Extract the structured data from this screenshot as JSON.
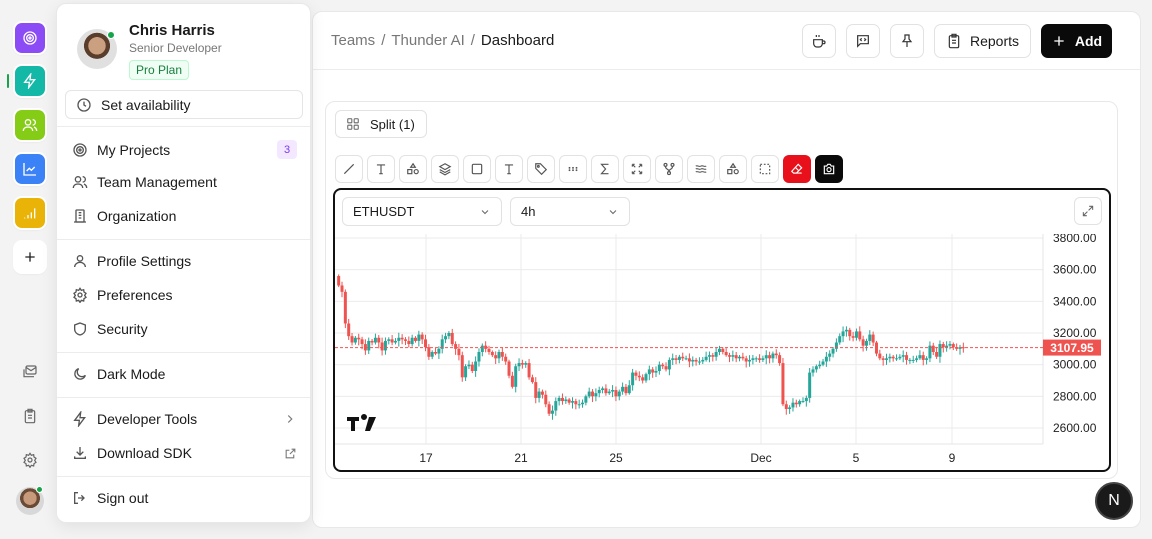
{
  "rail": {
    "apps": [
      {
        "name": "target-app",
        "color": "#8b4cf6"
      },
      {
        "name": "bolt-app",
        "color": "#14b8a6"
      },
      {
        "name": "team-app",
        "color": "#84cc16"
      },
      {
        "name": "analytics-app",
        "color": "#3b82f6"
      },
      {
        "name": "signal-app",
        "color": "#eab308"
      }
    ],
    "active_index": 1,
    "add_label": "+"
  },
  "user": {
    "name": "Chris Harris",
    "role": "Senior Developer",
    "plan": "Pro Plan",
    "status": "online"
  },
  "menu": {
    "availability": "Set availability",
    "items": [
      {
        "label": "My Projects",
        "badge": "3"
      },
      {
        "label": "Team Management"
      },
      {
        "label": "Organization"
      },
      {
        "label": "Profile Settings"
      },
      {
        "label": "Preferences"
      },
      {
        "label": "Security"
      },
      {
        "label": "Dark Mode"
      },
      {
        "label": "Developer Tools"
      },
      {
        "label": "Download SDK"
      },
      {
        "label": "Sign out"
      }
    ]
  },
  "breadcrumb": [
    "Teams",
    "Thunder AI",
    "Dashboard"
  ],
  "toolbar": {
    "reports": "Reports",
    "add": "Add"
  },
  "split_label": "Split (1)",
  "chart": {
    "symbol": "ETHUSDT",
    "interval": "4h",
    "last_price": "3107.95",
    "fab_letter": "N"
  },
  "chart_data": {
    "type": "candlestick",
    "title": "ETHUSDT 4h",
    "x_ticks": [
      "17",
      "21",
      "25",
      "Dec",
      "5",
      "9"
    ],
    "y_ticks": [
      "3800.00",
      "3600.00",
      "3400.00",
      "3200.00",
      "3000.00",
      "2800.00",
      "2600.00"
    ],
    "ylim": [
      2500,
      3850
    ],
    "last_price": 3107.95,
    "up_color": "#26a69a",
    "down_color": "#ef5350",
    "closes": [
      3500,
      3460,
      3260,
      3180,
      3140,
      3170,
      3160,
      3130,
      3090,
      3150,
      3140,
      3170,
      3140,
      3090,
      3150,
      3160,
      3140,
      3150,
      3170,
      3160,
      3150,
      3130,
      3170,
      3150,
      3190,
      3160,
      3110,
      3050,
      3080,
      3070,
      3100,
      3160,
      3180,
      3200,
      3130,
      3100,
      3060,
      2920,
      2990,
      3000,
      2960,
      3020,
      3080,
      3120,
      3100,
      3080,
      3060,
      3040,
      3080,
      3050,
      3020,
      2930,
      2860,
      2990,
      3010,
      3000,
      3010,
      2920,
      2890,
      2790,
      2830,
      2810,
      2750,
      2690,
      2710,
      2770,
      2790,
      2770,
      2780,
      2760,
      2770,
      2750,
      2750,
      2760,
      2800,
      2830,
      2800,
      2820,
      2840,
      2850,
      2820,
      2830,
      2840,
      2800,
      2830,
      2860,
      2820,
      2870,
      2950,
      2930,
      2920,
      2900,
      2940,
      2970,
      2950,
      2960,
      3000,
      2990,
      2970,
      3030,
      3040,
      3030,
      3050,
      3040,
      3040,
      3020,
      3030,
      3020,
      3020,
      3030,
      3050,
      3060,
      3050,
      3080,
      3100,
      3080,
      3060,
      3050,
      3060,
      3040,
      3050,
      3040,
      3020,
      3030,
      3040,
      3040,
      3030,
      3040,
      3060,
      3040,
      3070,
      3060,
      3010,
      2750,
      2720,
      2730,
      2760,
      2750,
      2770,
      2770,
      2790,
      2950,
      2970,
      2990,
      3000,
      3020,
      3050,
      3070,
      3100,
      3140,
      3180,
      3210,
      3220,
      3180,
      3170,
      3210,
      3160,
      3120,
      3150,
      3190,
      3140,
      3070,
      3040,
      3030,
      3040,
      3050,
      3040,
      3040,
      3050,
      3060,
      3030,
      3030,
      3030,
      3040,
      3060,
      3030,
      3040,
      3120,
      3080,
      3050,
      3130,
      3110,
      3120,
      3130,
      3110,
      3100,
      3110,
      3108
    ]
  }
}
